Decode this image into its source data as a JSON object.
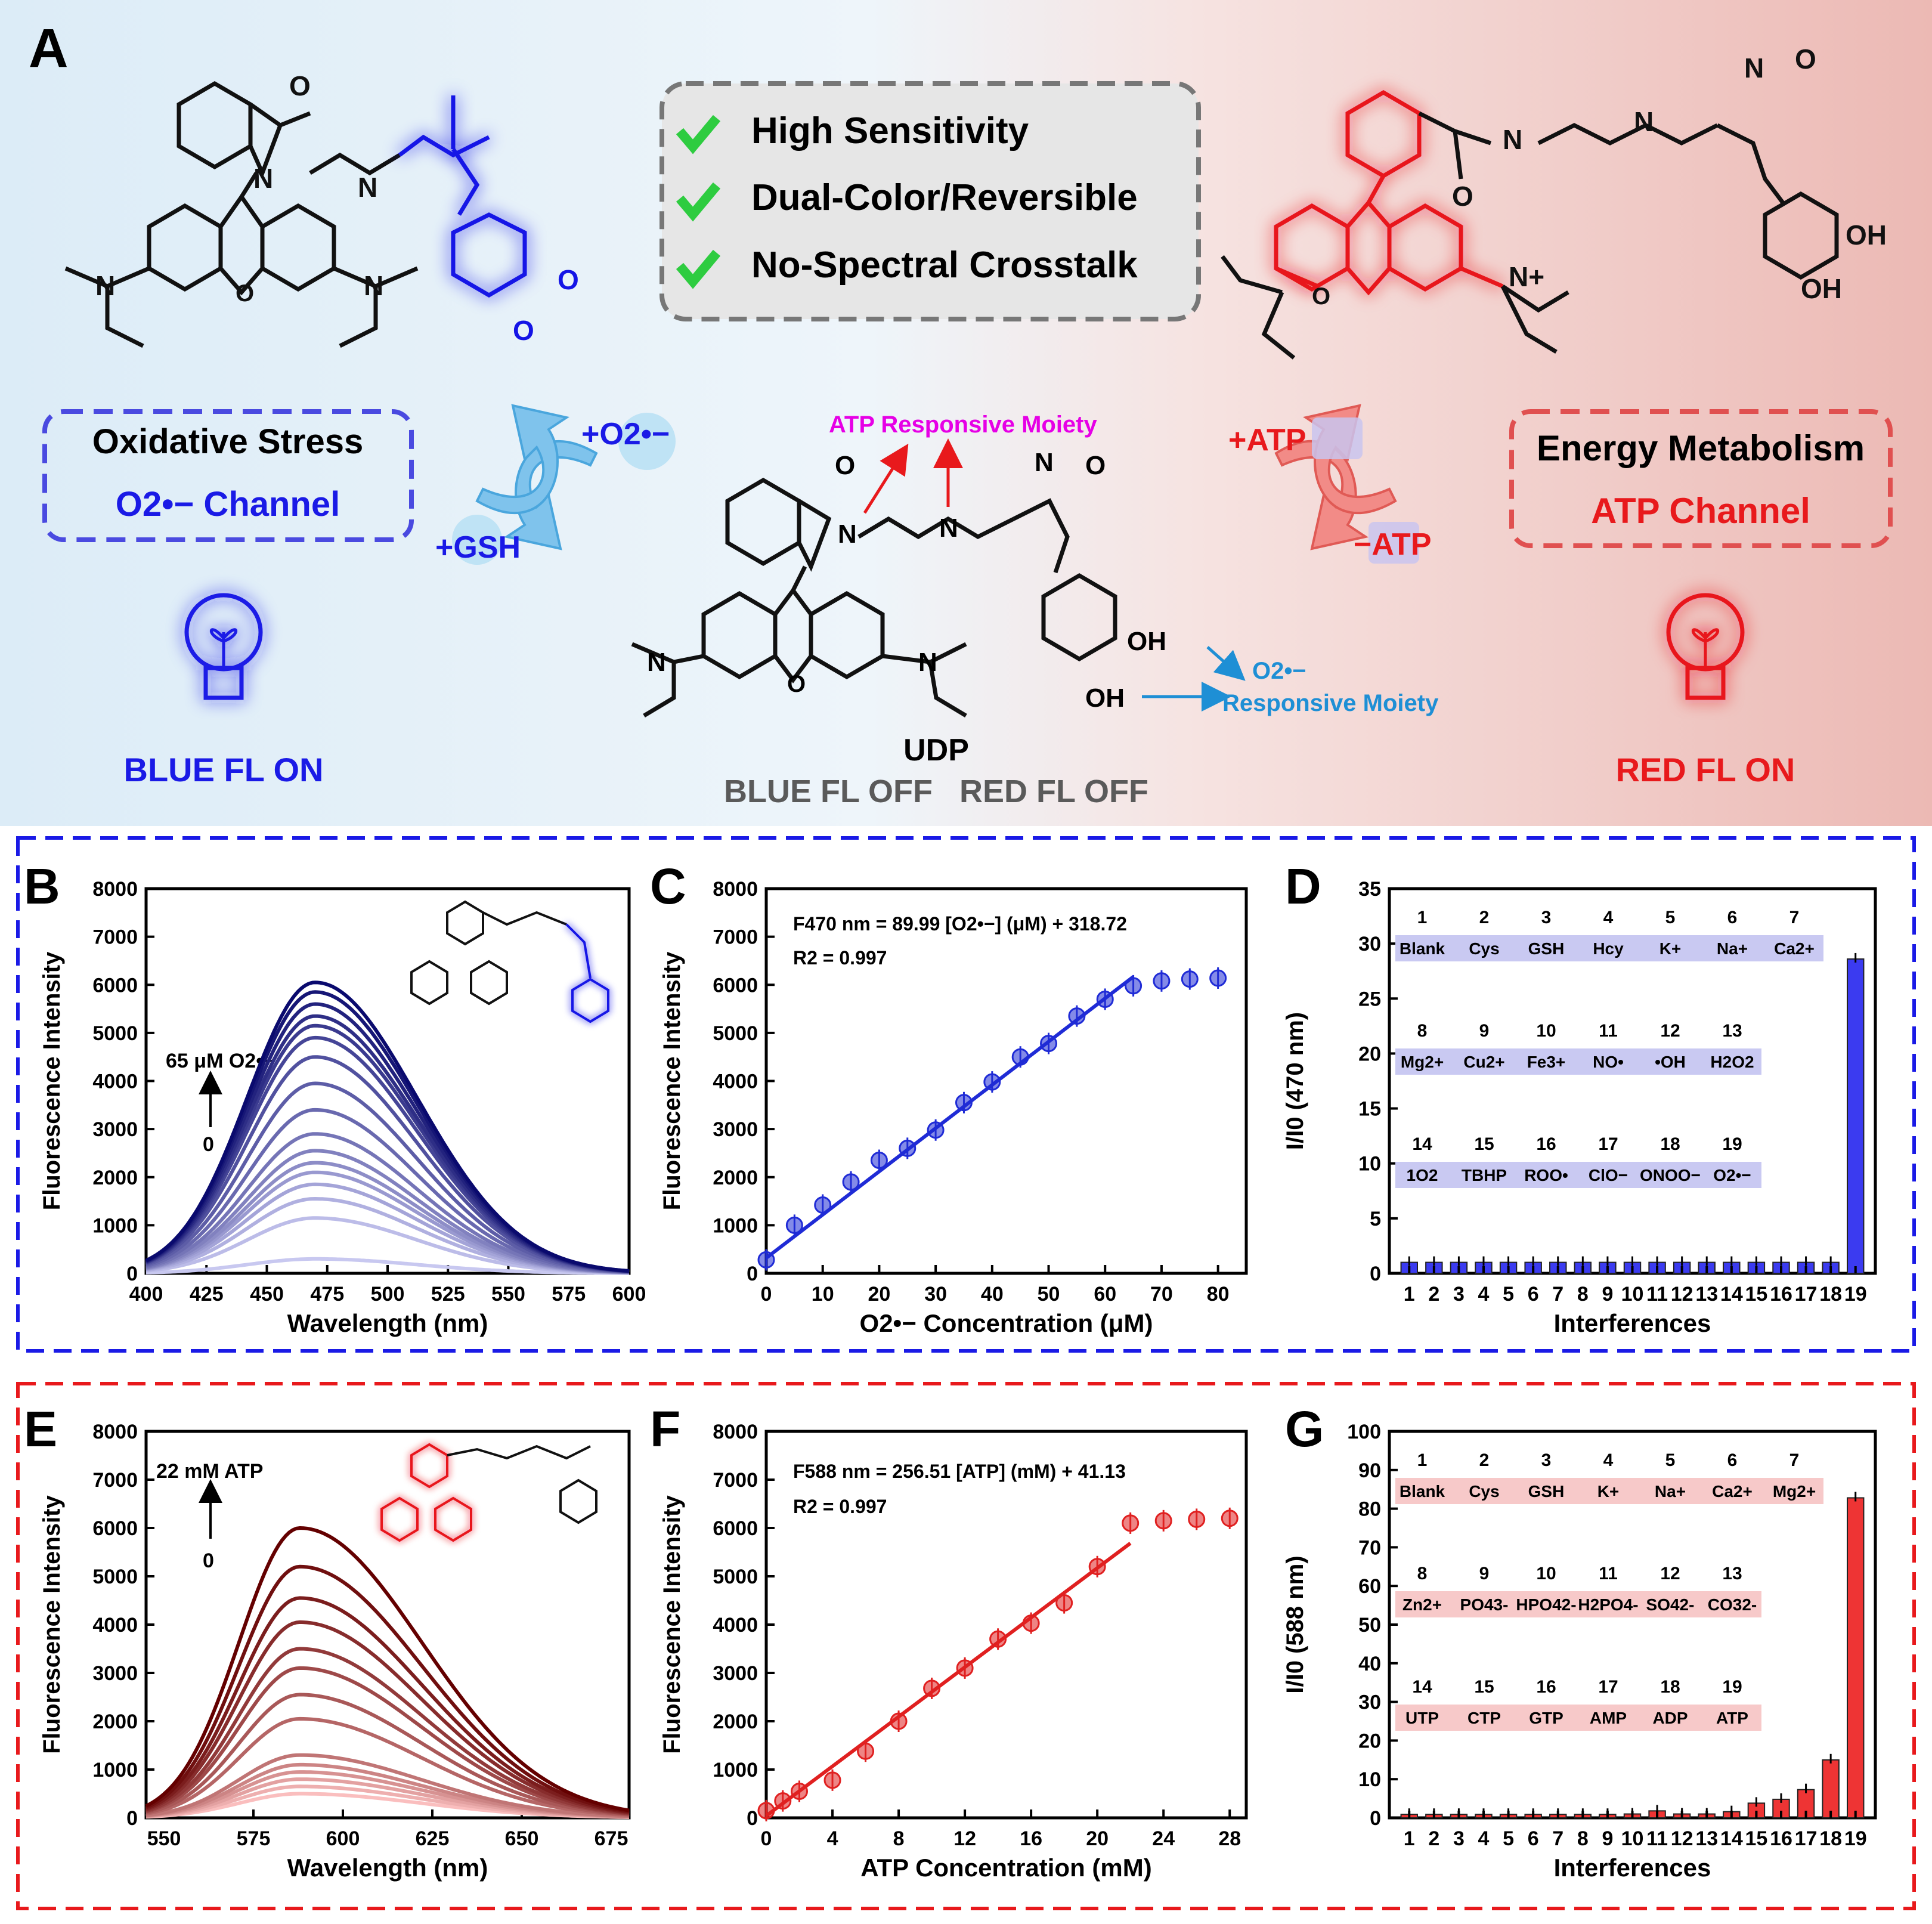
{
  "panel_a": {
    "letter": "A",
    "features": [
      "High Sensitivity",
      "Dual-Color/Reversible",
      "No-Spectral Crosstalk"
    ],
    "left_box": {
      "title": "Oxidative Stress",
      "channel": "O2•− Channel"
    },
    "right_box": {
      "title": "Energy Metabolism",
      "channel": "ATP Channel"
    },
    "cycle_left": {
      "forward": "+O2•−",
      "reverse": "+GSH"
    },
    "cycle_right": {
      "forward": "+ATP",
      "reverse": "−ATP"
    },
    "probe_name": "UDP",
    "probe_state": "BLUE FL OFF   RED FL OFF",
    "atp_moiety": "ATP Responsive Moiety",
    "o2_moiety_1": "O2•−",
    "o2_moiety_2": "Responsive Moiety",
    "blue_on": "BLUE FL ON",
    "red_on": "RED FL ON",
    "colors": {
      "blue": "#1a1ae6",
      "red": "#e8191c",
      "text_gray": "#5a5a5a",
      "magenta": "#e600e6",
      "cyan": "#1e8fd5"
    }
  },
  "letters": {
    "b": "B",
    "c": "C",
    "d": "D",
    "e": "E",
    "f": "F",
    "g": "G"
  },
  "annotations": {
    "b_arrow_top": "65 μM O2•−",
    "b_arrow_bottom": "0",
    "c_eq": "F470 nm = 89.99 [O2•−] (μM) + 318.72",
    "c_r2": "R2 = 0.997",
    "e_arrow_top": "22 mM ATP",
    "e_arrow_bottom": "0",
    "f_eq": "F588 nm = 256.51 [ATP] (mM) + 41.13",
    "f_r2": "R2 = 0.997"
  },
  "chart_data": [
    {
      "id": "B",
      "type": "line",
      "xlabel": "Wavelength (nm)",
      "ylabel": "Fluorescence Intensity",
      "xlim": [
        400,
        600
      ],
      "ylim": [
        0,
        8000
      ],
      "xticks": [
        400,
        425,
        450,
        475,
        500,
        525,
        550,
        575,
        600
      ],
      "yticks": [
        0,
        1000,
        2000,
        3000,
        4000,
        5000,
        6000,
        7000,
        8000
      ],
      "peak_x": 470,
      "series_peaks": [
        300,
        1150,
        1550,
        1850,
        2100,
        2300,
        2550,
        2900,
        3400,
        3950,
        4500,
        4900,
        5150,
        5350,
        5600,
        5850,
        6050
      ]
    },
    {
      "id": "C",
      "type": "scatter",
      "xlabel": "O2•− Concentration (μM)",
      "ylabel": "Fluorescence Intensity",
      "xlim": [
        0,
        85
      ],
      "ylim": [
        0,
        8000
      ],
      "xticks": [
        0,
        10,
        20,
        30,
        40,
        50,
        60,
        70,
        80
      ],
      "yticks": [
        0,
        1000,
        2000,
        3000,
        4000,
        5000,
        6000,
        7000,
        8000
      ],
      "x": [
        0,
        5,
        10,
        15,
        20,
        25,
        30,
        35,
        40,
        45,
        50,
        55,
        60,
        65,
        70,
        75,
        80
      ],
      "y": [
        280,
        1000,
        1420,
        1900,
        2350,
        2600,
        2980,
        3550,
        3980,
        4500,
        4780,
        5350,
        5700,
        5980,
        6080,
        6120,
        6140
      ],
      "fit": {
        "slope": 89.99,
        "intercept": 318.72,
        "x_range": [
          0,
          65
        ]
      }
    },
    {
      "id": "D",
      "type": "bar",
      "xlabel": "Interferences",
      "ylabel": "I/I0 (470 nm)",
      "ylim": [
        0,
        35
      ],
      "yticks": [
        0,
        5,
        10,
        15,
        20,
        25,
        30,
        35
      ],
      "categories": [
        "1",
        "2",
        "3",
        "4",
        "5",
        "6",
        "7",
        "8",
        "9",
        "10",
        "11",
        "12",
        "13",
        "14",
        "15",
        "16",
        "17",
        "18",
        "19"
      ],
      "values": [
        1,
        1,
        1,
        1,
        1,
        1,
        1,
        1,
        1,
        1,
        1,
        1,
        1,
        1,
        1,
        1,
        1,
        1,
        28.6
      ],
      "legend_numbers": [
        "1",
        "2",
        "3",
        "4",
        "5",
        "6",
        "7",
        "8",
        "9",
        "10",
        "11",
        "12",
        "13",
        "14",
        "15",
        "16",
        "17",
        "18",
        "19"
      ],
      "legend_names": [
        "Blank",
        "Cys",
        "GSH",
        "Hcy",
        "K+",
        "Na+",
        "Ca2+",
        "Mg2+",
        "Cu2+",
        "Fe3+",
        "NO•",
        "•OH",
        "H2O2",
        "1O2",
        "TBHP",
        "ROO•",
        "ClO−",
        "ONOO−",
        "O2•−"
      ]
    },
    {
      "id": "E",
      "type": "line",
      "xlabel": "Wavelength (nm)",
      "ylabel": "Fluorescence Intensity",
      "xlim": [
        545,
        680
      ],
      "ylim": [
        0,
        8000
      ],
      "xticks": [
        550,
        575,
        600,
        625,
        650,
        675
      ],
      "yticks": [
        0,
        1000,
        2000,
        3000,
        4000,
        5000,
        6000,
        7000,
        8000
      ],
      "peak_x": 588,
      "series_peaks": [
        500,
        650,
        800,
        950,
        1100,
        1300,
        2050,
        2550,
        3100,
        3500,
        4050,
        4550,
        5200,
        6000
      ]
    },
    {
      "id": "F",
      "type": "scatter",
      "xlabel": "ATP Concentration (mM)",
      "ylabel": "Fluorescence Intensity",
      "xlim": [
        0,
        29
      ],
      "ylim": [
        0,
        8000
      ],
      "xticks": [
        0,
        4,
        8,
        12,
        16,
        20,
        24,
        28
      ],
      "yticks": [
        0,
        1000,
        2000,
        3000,
        4000,
        5000,
        6000,
        7000,
        8000
      ],
      "x": [
        0,
        1,
        2,
        4,
        6,
        8,
        10,
        12,
        14,
        16,
        18,
        20,
        22,
        24,
        26,
        28
      ],
      "y": [
        150,
        350,
        550,
        780,
        1380,
        2000,
        2680,
        3100,
        3700,
        4030,
        4450,
        5200,
        6100,
        6150,
        6180,
        6200
      ],
      "fit": {
        "slope": 256.51,
        "intercept": 41.13,
        "x_range": [
          0,
          22
        ]
      }
    },
    {
      "id": "G",
      "type": "bar",
      "xlabel": "Interferences",
      "ylabel": "I/I0 (588 nm)",
      "ylim": [
        0,
        100
      ],
      "yticks": [
        0,
        10,
        20,
        30,
        40,
        50,
        60,
        70,
        80,
        90,
        100
      ],
      "categories": [
        "1",
        "2",
        "3",
        "4",
        "5",
        "6",
        "7",
        "8",
        "9",
        "10",
        "11",
        "12",
        "13",
        "14",
        "15",
        "16",
        "17",
        "18",
        "19"
      ],
      "values": [
        0.9,
        0.9,
        0.9,
        0.9,
        0.9,
        0.9,
        0.9,
        0.9,
        0.9,
        1.0,
        1.8,
        1.0,
        1.0,
        1.6,
        3.8,
        4.8,
        7.3,
        15.0,
        82.8
      ],
      "legend_numbers": [
        "1",
        "2",
        "3",
        "4",
        "5",
        "6",
        "7",
        "8",
        "9",
        "10",
        "11",
        "12",
        "13",
        "14",
        "15",
        "16",
        "17",
        "18",
        "19"
      ],
      "legend_names": [
        "Blank",
        "Cys",
        "GSH",
        "K+",
        "Na+",
        "Ca2+",
        "Mg2+",
        "Zn2+",
        "PO43-",
        "HPO42-",
        "H2PO4-",
        "SO42-",
        "CO32-",
        "UTP",
        "CTP",
        "GTP",
        "AMP",
        "ADP",
        "ATP"
      ]
    }
  ]
}
